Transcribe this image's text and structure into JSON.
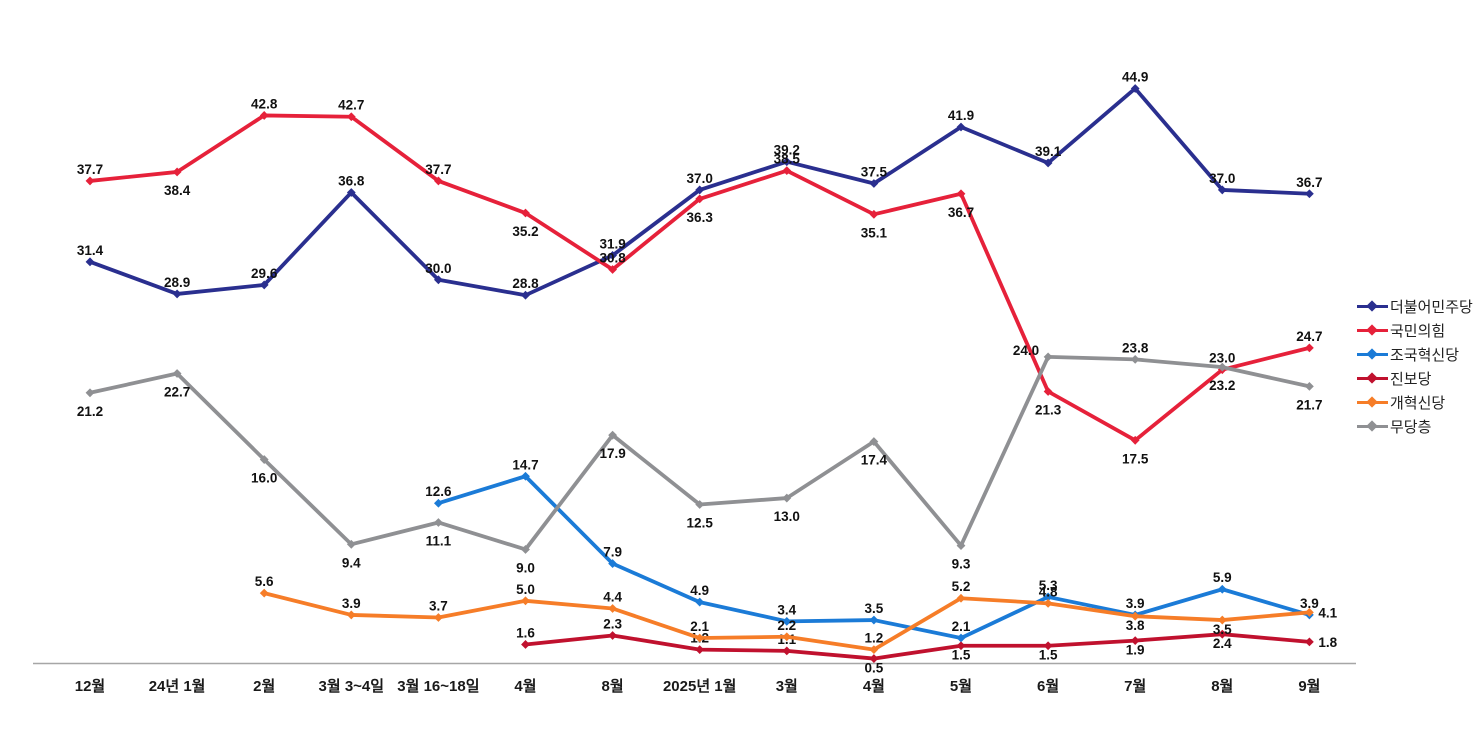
{
  "chart_data": {
    "type": "line",
    "title": "",
    "xlabel": "",
    "ylabel": "",
    "unit": "%",
    "grid": false,
    "legend_position": "right",
    "ylim": [
      0,
      48
    ],
    "axis_color": "#a6a6a6",
    "label_color": "#111111",
    "categories": [
      "12월",
      "24년 1월",
      "2월",
      "3월 3~4일",
      "3월 16~18일",
      "4월",
      "8월",
      "2025년 1월",
      "3월",
      "4월",
      "5월",
      "6월",
      "7월",
      "8월",
      "9월"
    ],
    "series": [
      {
        "id": "minjoo",
        "name": "더불어민주당",
        "color": "#2A2F8F",
        "marker": "diamond",
        "values": [
          31.4,
          28.9,
          29.6,
          36.8,
          30.0,
          28.8,
          31.9,
          37.0,
          39.2,
          37.5,
          41.9,
          39.1,
          44.9,
          37.0,
          36.7
        ],
        "label_pos": [
          "above",
          "above",
          "above",
          "above",
          "above",
          "above",
          "above",
          "above",
          "above",
          "above",
          "above",
          "above",
          "above",
          "above",
          "above"
        ]
      },
      {
        "id": "ppp",
        "name": "국민의힘",
        "color": "#E6213A",
        "marker": "diamond",
        "values": [
          37.7,
          38.4,
          42.8,
          42.7,
          37.7,
          35.2,
          30.8,
          36.3,
          38.5,
          35.1,
          36.7,
          21.3,
          17.5,
          23.0,
          24.7
        ],
        "label_pos": [
          "above",
          "below",
          "above",
          "above",
          "above",
          "below",
          "above",
          "below",
          "above",
          "below",
          "below",
          "below",
          "below",
          "above",
          "above"
        ]
      },
      {
        "id": "rebuilding-korea",
        "name": "조국혁신당",
        "color": "#1B7BD7",
        "marker": "diamond",
        "values": [
          null,
          null,
          null,
          null,
          12.6,
          14.7,
          7.9,
          4.9,
          3.4,
          3.5,
          2.1,
          5.3,
          3.9,
          5.9,
          3.9
        ],
        "label_pos": [
          null,
          null,
          null,
          null,
          "above",
          "above",
          "above",
          "above",
          "above",
          "above",
          "above",
          "above",
          "above",
          "above",
          "above"
        ]
      },
      {
        "id": "jinbo",
        "name": "진보당",
        "color": "#C0112E",
        "marker": "diamond",
        "values": [
          null,
          null,
          null,
          null,
          null,
          1.6,
          2.3,
          1.2,
          1.1,
          0.5,
          1.5,
          1.5,
          1.9,
          2.4,
          1.8
        ],
        "label_pos": [
          null,
          null,
          null,
          null,
          null,
          "above",
          "above",
          "above",
          "above",
          "belowtight",
          "belowtight",
          "belowtight",
          "belowtight",
          "belowtight",
          "right"
        ]
      },
      {
        "id": "reform",
        "name": "개혁신당",
        "color": "#F67D28",
        "marker": "diamond",
        "values": [
          null,
          null,
          5.6,
          3.9,
          3.7,
          5.0,
          4.4,
          2.1,
          2.2,
          1.2,
          5.2,
          4.8,
          3.8,
          3.5,
          4.1
        ],
        "label_pos": [
          null,
          null,
          "above",
          "above",
          "above",
          "above",
          "above",
          "above",
          "above",
          "above",
          "above",
          "above",
          "belowtight",
          "belowtight",
          "right"
        ]
      },
      {
        "id": "independents",
        "name": "무당층",
        "color": "#8F9093",
        "marker": "diamond",
        "values": [
          21.2,
          22.7,
          16.0,
          9.4,
          11.1,
          9.0,
          17.9,
          12.5,
          13.0,
          17.4,
          9.3,
          24.0,
          23.8,
          23.2,
          21.7
        ],
        "label_pos": [
          "below",
          "below",
          "below",
          "below",
          "below",
          "below",
          "below",
          "below",
          "below",
          "below",
          "below",
          "left",
          "above",
          "below",
          "below"
        ]
      }
    ]
  }
}
